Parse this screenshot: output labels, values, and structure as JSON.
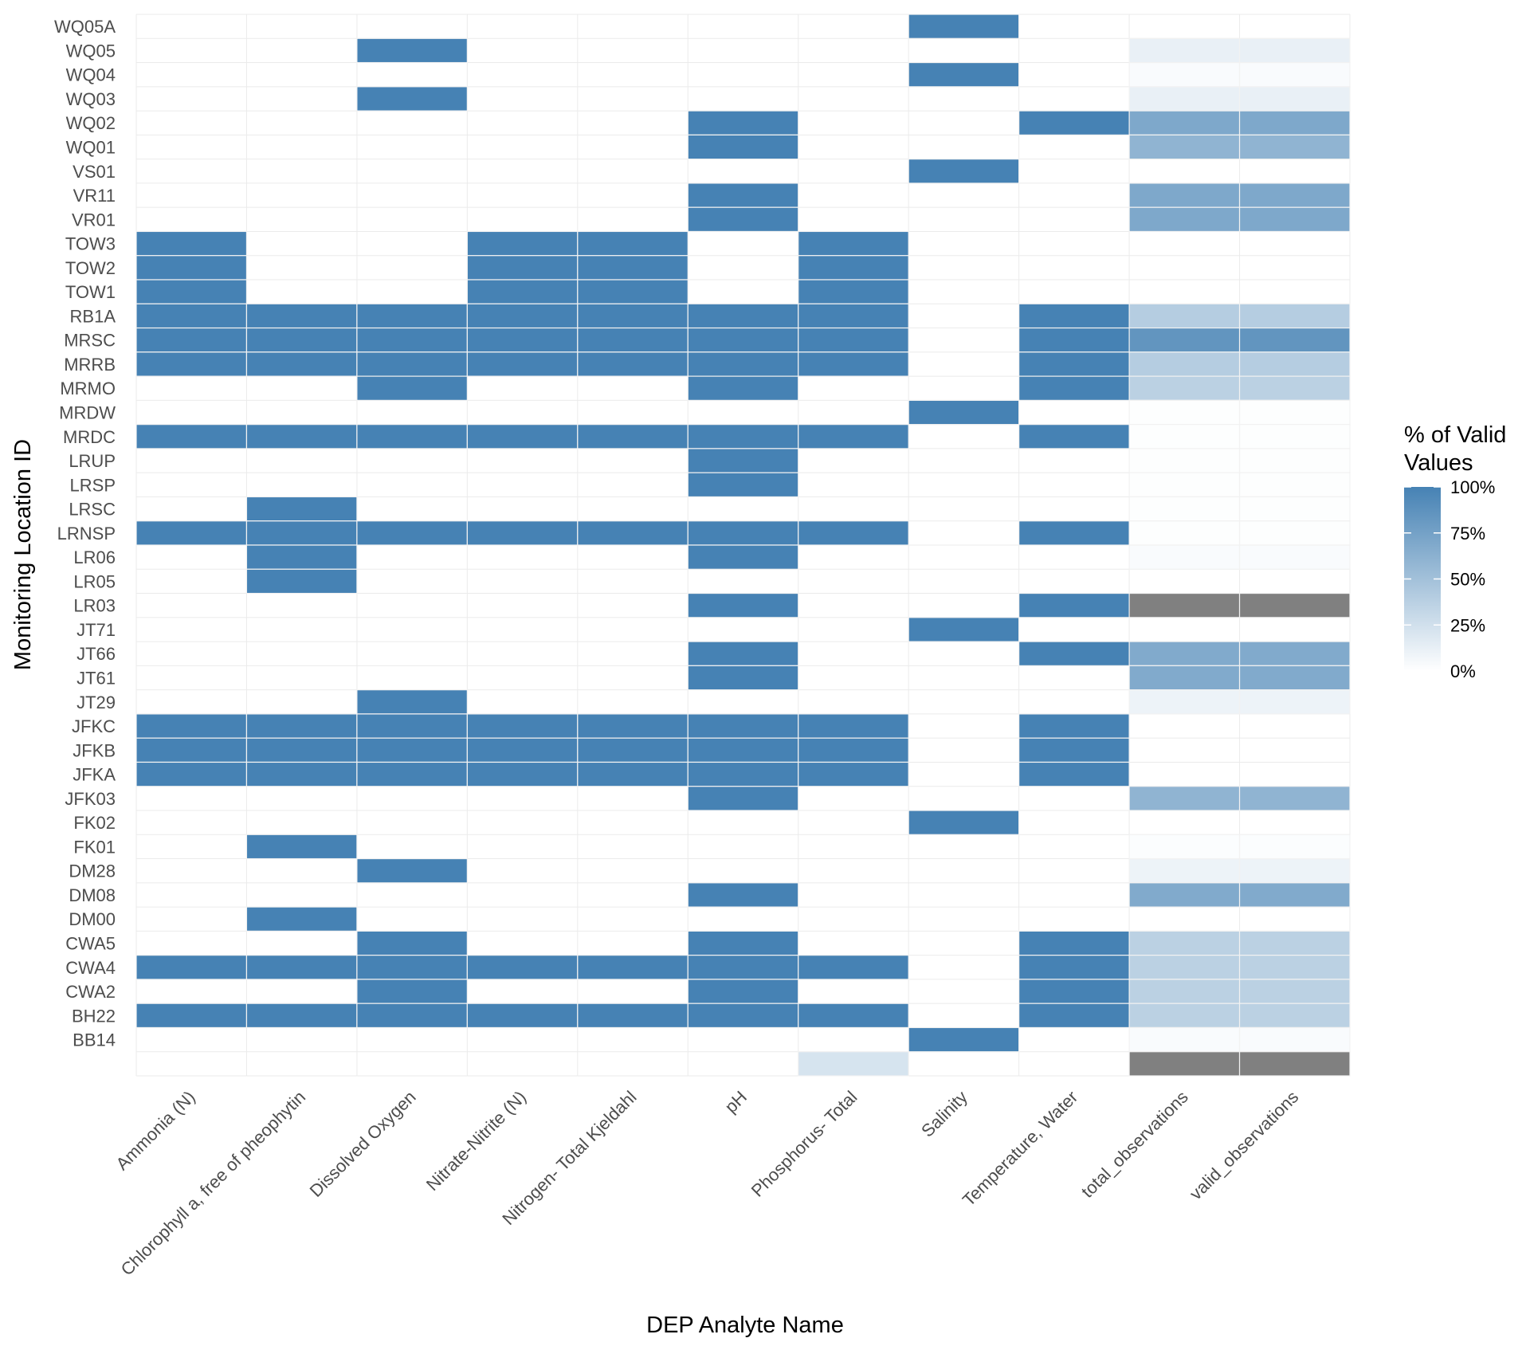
{
  "chart_data": {
    "type": "heatmap",
    "title": "",
    "xlabel": "DEP Analyte Name",
    "ylabel": "Monitoring Location ID",
    "legend": {
      "title_lines": [
        "% of Valid",
        "Values"
      ],
      "placement": "right",
      "breaks": [
        {
          "value": 1.0,
          "label": "100%"
        },
        {
          "value": 0.75,
          "label": "75%"
        },
        {
          "value": 0.5,
          "label": "50%"
        },
        {
          "value": 0.25,
          "label": "25%"
        },
        {
          "value": 0.0,
          "label": "0%"
        }
      ],
      "low_color": "#ffffff",
      "high_color": "#4682b4",
      "na_color": "#808080"
    },
    "x_categories": [
      "Ammonia (N)",
      "Chlorophyll a, free of pheophytin",
      "Dissolved Oxygen",
      "Nitrate-Nitrite (N)",
      "Nitrogen- Total Kjeldahl",
      "pH",
      "Phosphorus- Total",
      "Salinity",
      "Temperature, Water",
      "total_observations",
      "valid_observations"
    ],
    "y_categories": [
      "WQ05A",
      "WQ05",
      "WQ04",
      "WQ03",
      "WQ02",
      "WQ01",
      "VS01",
      "VR11",
      "VR01",
      "TOW3",
      "TOW2",
      "TOW1",
      "RB1A",
      "MRSC",
      "MRRB",
      "MRMO",
      "MRDW",
      "MRDC",
      "LRUP",
      "LRSP",
      "LRSC",
      "LRNSP",
      "LR06",
      "LR05",
      "LR03",
      "JT71",
      "JT66",
      "JT61",
      "JT29",
      "JFKC",
      "JFKB",
      "JFKA",
      "JFK03",
      "FK02",
      "FK01",
      "DM28",
      "DM08",
      "DM00",
      "CWA5",
      "CWA4",
      "CWA2",
      "BH22",
      "BB14",
      ""
    ],
    "values": [
      [
        null,
        null,
        null,
        null,
        null,
        null,
        null,
        1,
        null,
        null,
        null
      ],
      [
        null,
        null,
        1,
        null,
        null,
        null,
        null,
        null,
        null,
        0.12,
        0.12
      ],
      [
        null,
        null,
        null,
        null,
        null,
        null,
        null,
        1,
        null,
        0.03,
        0.03
      ],
      [
        null,
        null,
        1,
        null,
        null,
        null,
        null,
        null,
        null,
        0.12,
        0.12
      ],
      [
        null,
        null,
        null,
        null,
        null,
        1,
        null,
        null,
        1,
        0.7,
        0.7
      ],
      [
        null,
        null,
        null,
        null,
        null,
        1,
        null,
        null,
        null,
        0.6,
        0.6
      ],
      [
        null,
        null,
        null,
        null,
        null,
        null,
        null,
        1,
        null,
        null,
        null
      ],
      [
        null,
        null,
        null,
        null,
        null,
        1,
        null,
        null,
        null,
        0.7,
        0.7
      ],
      [
        null,
        null,
        null,
        null,
        null,
        1,
        null,
        null,
        null,
        0.7,
        0.7
      ],
      [
        1,
        null,
        null,
        1,
        1,
        null,
        1,
        null,
        null,
        null,
        null
      ],
      [
        1,
        null,
        null,
        1,
        1,
        null,
        1,
        null,
        null,
        null,
        null
      ],
      [
        1,
        null,
        null,
        1,
        1,
        null,
        1,
        null,
        null,
        null,
        null
      ],
      [
        1,
        1,
        1,
        1,
        1,
        1,
        1,
        null,
        1,
        0.4,
        0.4
      ],
      [
        1,
        1,
        1,
        1,
        1,
        1,
        1,
        null,
        1,
        0.85,
        0.85
      ],
      [
        1,
        1,
        1,
        1,
        1,
        1,
        1,
        null,
        1,
        0.4,
        0.4
      ],
      [
        null,
        null,
        1,
        null,
        null,
        1,
        null,
        null,
        1,
        0.37,
        0.37
      ],
      [
        null,
        null,
        null,
        null,
        null,
        null,
        null,
        1,
        null,
        0.01,
        0.01
      ],
      [
        1,
        1,
        1,
        1,
        1,
        1,
        1,
        null,
        1,
        0.01,
        0.01
      ],
      [
        null,
        null,
        null,
        null,
        null,
        1,
        null,
        null,
        null,
        0.01,
        0.01
      ],
      [
        null,
        null,
        null,
        null,
        null,
        1,
        null,
        null,
        null,
        0.01,
        0.01
      ],
      [
        null,
        1,
        null,
        null,
        null,
        null,
        null,
        null,
        null,
        0.01,
        0.01
      ],
      [
        1,
        1,
        1,
        1,
        1,
        1,
        1,
        null,
        1,
        0.01,
        0.01
      ],
      [
        null,
        1,
        null,
        null,
        null,
        1,
        null,
        null,
        null,
        0.03,
        0.03
      ],
      [
        null,
        1,
        null,
        null,
        null,
        null,
        null,
        null,
        null,
        null,
        null
      ],
      [
        null,
        null,
        null,
        null,
        null,
        1,
        null,
        null,
        1,
        "NA",
        "NA"
      ],
      [
        null,
        null,
        null,
        null,
        null,
        null,
        null,
        1,
        null,
        null,
        null
      ],
      [
        null,
        null,
        null,
        null,
        null,
        1,
        null,
        null,
        1,
        0.68,
        0.68
      ],
      [
        null,
        null,
        null,
        null,
        null,
        1,
        null,
        null,
        null,
        0.68,
        0.68
      ],
      [
        null,
        null,
        1,
        null,
        null,
        null,
        null,
        null,
        null,
        0.1,
        0.1
      ],
      [
        1,
        1,
        1,
        1,
        1,
        1,
        1,
        null,
        1,
        null,
        null
      ],
      [
        1,
        1,
        1,
        1,
        1,
        1,
        1,
        null,
        1,
        null,
        null
      ],
      [
        1,
        1,
        1,
        1,
        1,
        1,
        1,
        null,
        1,
        null,
        null
      ],
      [
        null,
        null,
        null,
        null,
        null,
        1,
        null,
        null,
        null,
        0.6,
        0.6
      ],
      [
        null,
        null,
        null,
        null,
        null,
        null,
        null,
        1,
        null,
        null,
        null
      ],
      [
        null,
        1,
        null,
        null,
        null,
        null,
        null,
        null,
        null,
        0.02,
        0.02
      ],
      [
        null,
        null,
        1,
        null,
        null,
        null,
        null,
        null,
        null,
        0.1,
        0.1
      ],
      [
        null,
        null,
        null,
        null,
        null,
        1,
        null,
        null,
        null,
        0.68,
        0.68
      ],
      [
        null,
        1,
        null,
        null,
        null,
        null,
        null,
        null,
        null,
        null,
        null
      ],
      [
        null,
        null,
        1,
        null,
        null,
        1,
        null,
        null,
        1,
        0.37,
        0.37
      ],
      [
        1,
        1,
        1,
        1,
        1,
        1,
        1,
        null,
        1,
        0.37,
        0.37
      ],
      [
        null,
        null,
        1,
        null,
        null,
        1,
        null,
        null,
        1,
        0.37,
        0.37
      ],
      [
        1,
        1,
        1,
        1,
        1,
        1,
        1,
        null,
        1,
        0.37,
        0.37
      ],
      [
        null,
        null,
        null,
        null,
        null,
        null,
        null,
        1,
        null,
        0.03,
        0.03
      ],
      [
        null,
        null,
        null,
        null,
        null,
        null,
        0.22,
        null,
        null,
        "NA",
        "NA"
      ]
    ],
    "grid": true
  }
}
